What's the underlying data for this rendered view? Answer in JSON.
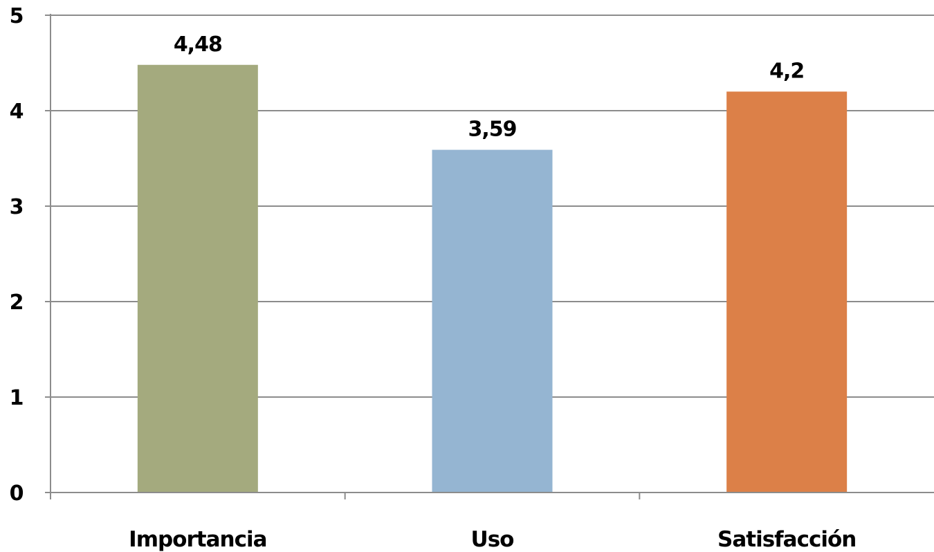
{
  "chart_data": {
    "type": "bar",
    "categories": [
      "Importancia",
      "Uso",
      "Satisfacción"
    ],
    "values": [
      4.48,
      3.59,
      4.2
    ],
    "data_labels": [
      "4,48",
      "3,59",
      "4,2"
    ],
    "colors": [
      "#a4aa7e",
      "#95b5d2",
      "#dc8048"
    ],
    "ylim": [
      0,
      5
    ],
    "yticks": [
      "0",
      "1",
      "2",
      "3",
      "4",
      "5"
    ],
    "grid": true,
    "legend": "none"
  }
}
